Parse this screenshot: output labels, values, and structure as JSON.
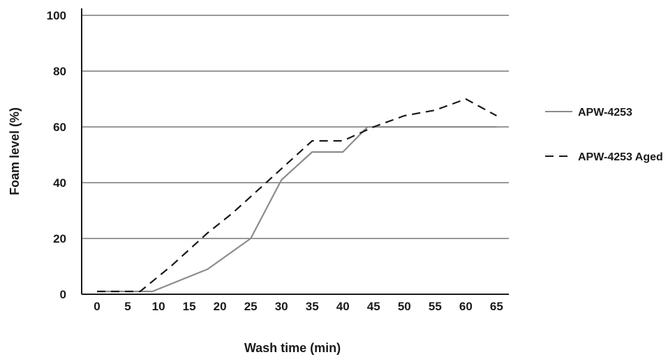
{
  "chart_data": {
    "type": "line",
    "xlabel": "Wash time (min)",
    "ylabel": "Foam level (%)",
    "xlim": [
      -2.5,
      67
    ],
    "ylim": [
      0,
      100
    ],
    "x_ticks": [
      "0",
      "5",
      "10",
      "15",
      "20",
      "25",
      "30",
      "35",
      "40",
      "45",
      "50",
      "55",
      "60",
      "65"
    ],
    "y_ticks": [
      "0",
      "20",
      "40",
      "60",
      "80",
      "100"
    ],
    "grid": "horizontal",
    "legend_position": "right",
    "series": [
      {
        "name": "APW-4253",
        "style": "solid",
        "color": "#8c8c8c",
        "x": [
          0,
          5,
          9,
          18,
          25,
          30,
          35,
          40,
          44,
          50,
          55,
          60,
          65
        ],
        "y": [
          1,
          1,
          1,
          9,
          20,
          41,
          51,
          51,
          60,
          60,
          60,
          60,
          60
        ]
      },
      {
        "name": "APW-4253 Aged",
        "style": "dashed",
        "color": "#1a1a1a",
        "x": [
          0,
          7,
          12,
          18,
          22,
          27,
          32,
          35,
          40,
          45,
          50,
          55,
          60,
          65
        ],
        "y": [
          1,
          1,
          10,
          22,
          29,
          39,
          49,
          55,
          55,
          60,
          64,
          66,
          70,
          64
        ]
      }
    ]
  }
}
